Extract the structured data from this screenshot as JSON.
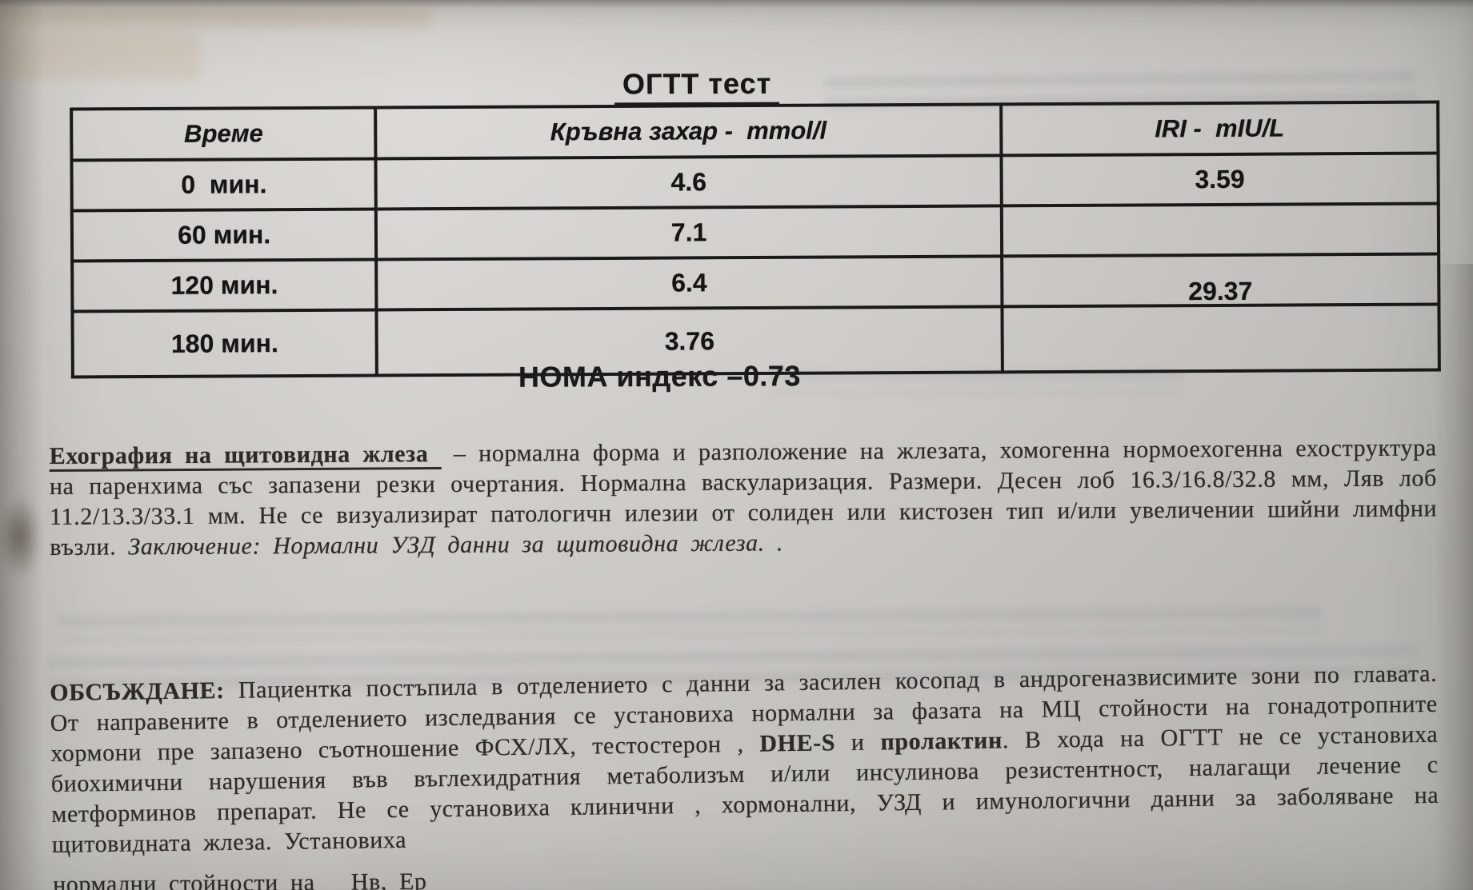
{
  "colors": {
    "paper": "#d6d3cf",
    "ink": "#1b1a19",
    "body_text": "#2e2b27",
    "bleed_orange": "#b5824a"
  },
  "title": "ОГТТ тест",
  "table": {
    "headers": [
      "Време",
      "Кръвна захар -  mmol/l",
      "IRI -  mIU/L"
    ],
    "rows": [
      {
        "time": "0  мин.",
        "glucose": "4.6",
        "iri": "3.59"
      },
      {
        "time": "60 мин.",
        "glucose": "7.1",
        "iri": ""
      },
      {
        "time": "120 мин.",
        "glucose": "6.4",
        "iri": "29.37"
      },
      {
        "time": "180 мин.",
        "glucose": "3.76",
        "iri": ""
      }
    ]
  },
  "homa_line": "НОМА индекс –0.73",
  "echography": {
    "heading": "Ехография на щитовидна жлеза",
    "body": "– нормална форма и разположение на жлезата, хомогенна нормоехогенна ехоструктура на паренхима със запазени резки очертания. Нормална васкуларизация. Размери. Десен лоб 16.3/16.8/32.8 мм, Ляв лоб 11.2/13.3/33.1 мм. Не се визуализират патологичн илезии от солиден или кистозен тип и/или увеличении шийни лимфни възли. ",
    "conclusion": "Заключение:  Нормални УЗД данни за щитовидна жлеза. ."
  },
  "discussion": {
    "label": "ОБСЪЖДАНЕ:",
    "text_1": " Пациентка постъпила в отделението с данни за засилен косопад в андрогеназвисимите зони по главата. От направените в отделението изследвания се установиха нормални за фазата на МЦ стойности на гонадотропните хормони пре запазено съотношение ФСХ/ЛХ, тестостерон , ",
    "bold_dhes": "DHE-S",
    "text_2": " и ",
    "bold_prolactin": "пролактин",
    "text_3": ". В хода на ОГТТ  не се установиха биохимични нарушения във въглехидратния метаболизъм и/или инсулинова резистентност, налагащи лечение с метформинов препарат.  Не се установиха клинични , хормонални, УЗД и имунологични данни за заболяване на щитовидната жлеза. Установиха",
    "clipped_line": "нормални стойности на   Нв, Ер"
  }
}
